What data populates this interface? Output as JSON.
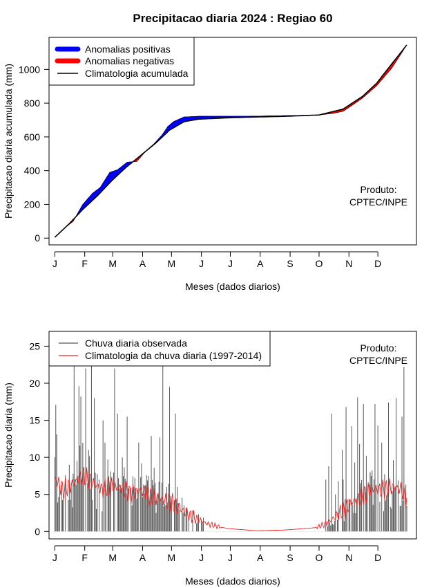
{
  "title": "Precipitacao diaria 2024 : Regiao 60",
  "chart_data": [
    {
      "type": "area",
      "name": "accumulated",
      "xlabel": "Meses (dados diarios)",
      "ylabel": "Precipitacao diaria acumulada (mm)",
      "x_tick_labels": [
        "J",
        "F",
        "M",
        "A",
        "M",
        "J",
        "J",
        "A",
        "S",
        "O",
        "N",
        "D"
      ],
      "xlim": [
        -5,
        376
      ],
      "ylim": [
        -40,
        1190
      ],
      "y_ticks": [
        0,
        200,
        400,
        600,
        800,
        1000
      ],
      "legend": {
        "position": "top-left",
        "items": [
          {
            "label": "Anomalias positivas",
            "color": "#0000ff",
            "style": "thick"
          },
          {
            "label": "Anomalias negativas",
            "color": "#ff0000",
            "style": "thick"
          },
          {
            "label": "Climatologia acumulada",
            "color": "#000000",
            "style": "line"
          }
        ]
      },
      "annotation": [
        "Produto:",
        "CPTEC/INPE"
      ],
      "climatology_knots": {
        "day": [
          1,
          15,
          30,
          45,
          60,
          75,
          90,
          105,
          120,
          135,
          150,
          180,
          210,
          240,
          275,
          300,
          320,
          335,
          350,
          366
        ],
        "cum_mm": [
          5,
          80,
          170,
          250,
          340,
          420,
          490,
          560,
          640,
          690,
          705,
          713,
          718,
          722,
          730,
          765,
          840,
          920,
          1030,
          1145
        ]
      },
      "observed_knots": {
        "day": [
          1,
          8,
          20,
          30,
          40,
          48,
          58,
          66,
          76,
          86,
          96,
          104,
          112,
          118,
          124,
          135,
          150,
          180,
          210,
          240,
          275,
          290,
          300,
          310,
          320,
          335,
          350,
          366
        ],
        "cum_mm": [
          5,
          45,
          100,
          200,
          265,
          300,
          390,
          405,
          450,
          455,
          520,
          560,
          610,
          660,
          690,
          718,
          722,
          722,
          723,
          726,
          730,
          740,
          752,
          790,
          830,
          905,
          1005,
          1145
        ]
      }
    },
    {
      "type": "bar",
      "name": "daily",
      "xlabel": "Meses (dados diarios)",
      "ylabel": "Precipitacao diaria (mm)",
      "x_tick_labels": [
        "J",
        "F",
        "M",
        "A",
        "M",
        "J",
        "J",
        "A",
        "S",
        "O",
        "N",
        "D"
      ],
      "xlim": [
        -5,
        376
      ],
      "ylim": [
        -1,
        27
      ],
      "y_ticks": [
        0,
        5,
        10,
        15,
        20,
        25
      ],
      "legend": {
        "position": "top-left",
        "items": [
          {
            "label": "Chuva diaria observada",
            "color": "#555555",
            "style": "line"
          },
          {
            "label": "Climatologia da chuva diaria (1997-2014)",
            "color": "#ee2222",
            "style": "line"
          }
        ]
      },
      "annotation": [
        "Produto:",
        "CPTEC/INPE"
      ],
      "observed_peaks_mm": {
        "day": [
          1,
          2,
          3,
          10,
          21,
          26,
          28,
          33,
          39,
          42,
          47,
          51,
          53,
          56,
          63,
          66,
          71,
          76,
          84,
          88,
          91,
          94,
          101,
          104,
          110,
          113,
          117,
          120,
          122,
          126,
          128,
          282,
          285,
          288,
          292,
          295,
          299,
          300,
          303,
          309,
          312,
          315,
          317,
          321,
          324,
          328,
          333,
          336,
          340,
          347,
          352,
          355,
          361,
          363
        ],
        "value": [
          10,
          17.1,
          13.1,
          4.7,
          22.3,
          19.6,
          18.2,
          22.0,
          22.3,
          18.0,
          7.0,
          15.0,
          12.0,
          9.7,
          22.0,
          15.9,
          10.0,
          15.5,
          7.2,
          12.0,
          9.2,
          5.1,
          12.9,
          8.6,
          12.7,
          22.4,
          6.0,
          19.5,
          4.0,
          15.9,
          6.0,
          7.0,
          8.8,
          15.9,
          5.0,
          6.8,
          11.0,
          7.0,
          16.8,
          14.2,
          9.3,
          18.1,
          11.8,
          17.2,
          10.2,
          8.0,
          17.2,
          14.3,
          12.0,
          17.4,
          9.6,
          18.0,
          15.5,
          22.2
        ]
      },
      "climatology_knots": {
        "day": [
          1,
          10,
          20,
          30,
          40,
          50,
          60,
          70,
          80,
          90,
          100,
          110,
          120,
          130,
          140,
          150,
          160,
          180,
          210,
          240,
          270,
          280,
          290,
          300,
          310,
          320,
          330,
          340,
          350,
          360,
          366
        ],
        "value_mm": [
          7.0,
          5.6,
          6.4,
          7.6,
          6.6,
          5.6,
          6.2,
          5.8,
          5.0,
          5.6,
          4.8,
          4.4,
          4.0,
          3.2,
          2.2,
          1.6,
          1.0,
          0.4,
          0.1,
          0.2,
          0.5,
          0.9,
          1.8,
          2.8,
          4.0,
          4.8,
          5.8,
          5.6,
          6.0,
          5.7,
          4.3
        ]
      }
    }
  ]
}
